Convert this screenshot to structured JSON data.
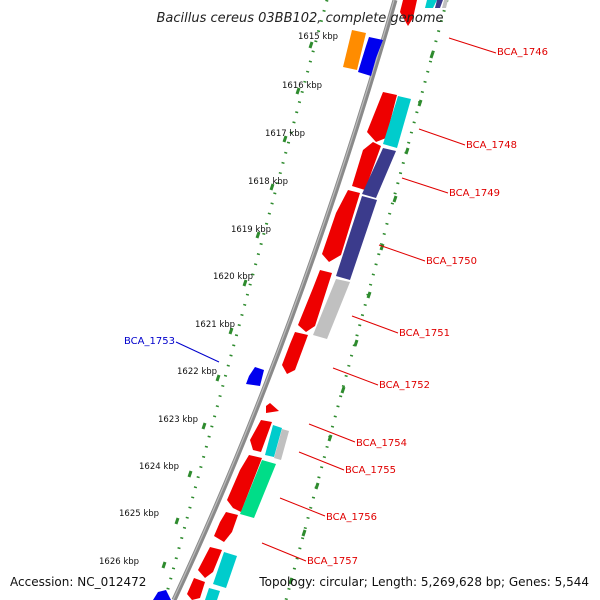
{
  "title": "Bacillus cereus 03BB102, complete genome",
  "footer": {
    "accession": "Accession: NC_012472",
    "topology": "Topology: circular; Length: 5,269,628 bp; Genes: 5,544"
  },
  "colors": {
    "backbone": "#8a8a8a",
    "scale_tick": "#2e8b2e",
    "label_red": "#e00000",
    "label_blue": "#0000cc",
    "cds_red": "#ee0000",
    "cds_blue": "#0000ee",
    "orange": "#ff8c00",
    "cyan": "#00cccc",
    "slate": "#3b3b8c",
    "grey": "#c0c0c0",
    "green": "#00dd88"
  },
  "scale_labels": [
    "1615 kbp",
    "1616 kbp",
    "1617 kbp",
    "1618 kbp",
    "1619 kbp",
    "1620 kbp",
    "1621 kbp",
    "1622 kbp",
    "1623 kbp",
    "1624 kbp",
    "1625 kbp",
    "1626 kbp"
  ],
  "gene_labels": {
    "bca_1746": "BCA_1746",
    "bca_1748": "BCA_1748",
    "bca_1749": "BCA_1749",
    "bca_1750": "BCA_1750",
    "bca_1751": "BCA_1751",
    "bca_1752": "BCA_1752",
    "bca_1753": "BCA_1753",
    "bca_1754": "BCA_1754",
    "bca_1755": "BCA_1755",
    "bca_1756": "BCA_1756",
    "bca_1757": "BCA_1757"
  }
}
